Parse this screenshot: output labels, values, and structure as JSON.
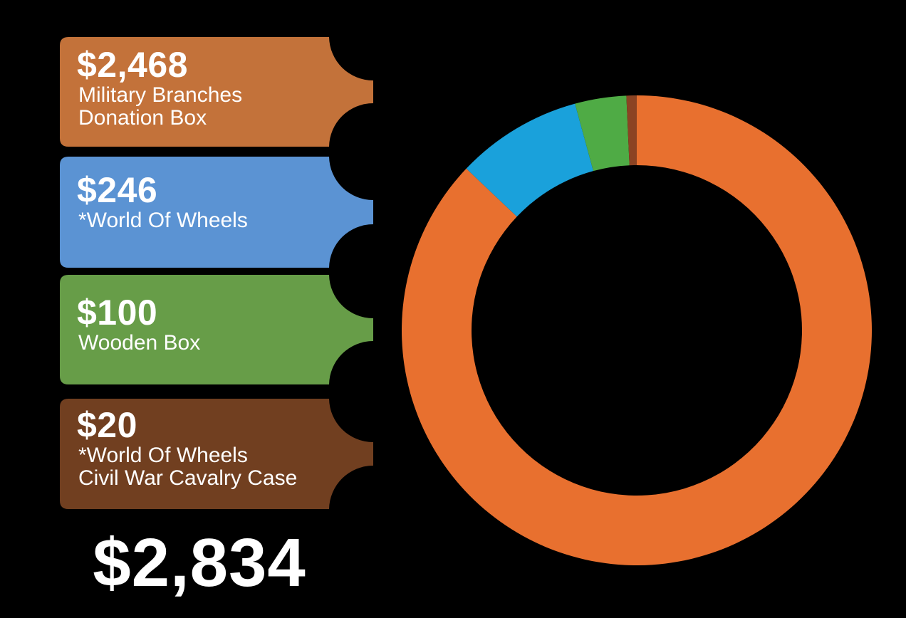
{
  "chart_data": {
    "type": "pie",
    "style": "donut",
    "categories": [
      "Military Branches Donation Box",
      "*World Of Wheels",
      "Wooden Box",
      "*World Of Wheels Civil War Cavalry Case"
    ],
    "values": [
      2468,
      246,
      100,
      20
    ],
    "value_labels": [
      "$2,468",
      "$246",
      "$100",
      "$20"
    ],
    "description_lines": [
      "Military Branches\nDonation Box",
      "*World Of Wheels",
      "Wooden Box",
      "*World Of Wheels\nCivil War Cavalry Case"
    ],
    "colors": {
      "chart": [
        "#e8702f",
        "#1aa1db",
        "#4fab45",
        "#8b4323"
      ],
      "legend_boxes": [
        "#c3723a",
        "#5b93d3",
        "#679d48",
        "#713f20"
      ]
    },
    "start_angle_deg": 0,
    "direction": "clockwise",
    "total_label": "$2,834",
    "legend_position": "left"
  }
}
